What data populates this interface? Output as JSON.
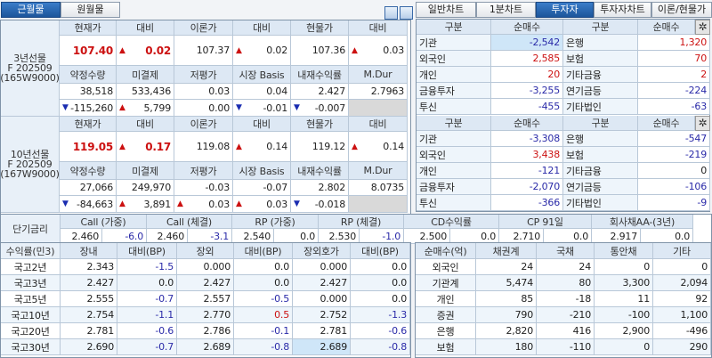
{
  "left_tabs": [
    {
      "label": "근월물",
      "selected": true
    },
    {
      "label": "원월물",
      "selected": false
    }
  ],
  "right_tabs": [
    {
      "label": "일반차트",
      "selected": false
    },
    {
      "label": "1분차트",
      "selected": false
    },
    {
      "label": "투자자",
      "selected": true
    },
    {
      "label": "투자자차트",
      "selected": false
    },
    {
      "label": "이론/현물가",
      "selected": false
    }
  ],
  "icons": {
    "layout_icon_1": "split-horizontal-icon",
    "layout_icon_2": "split-vertical-icon",
    "gear": "gear-icon"
  },
  "colors": {
    "up": "#cc1111",
    "down": "#2a2aa8",
    "accent": "#1c559b",
    "header_bg": "#dde8f4"
  },
  "futures": [
    {
      "label": [
        "3년선물",
        "F 202509",
        "(165W9000)"
      ],
      "headers1": [
        "현재가",
        "대비",
        "이론가",
        "대비",
        "현물가",
        "대비"
      ],
      "values1": [
        {
          "v": "107.40",
          "dir": "",
          "emph": true
        },
        {
          "v": "0.02",
          "dir": "up",
          "emph": true
        },
        {
          "v": "107.37",
          "dir": ""
        },
        {
          "v": "0.02",
          "dir": "up"
        },
        {
          "v": "107.36",
          "dir": ""
        },
        {
          "v": "0.03",
          "dir": "up"
        }
      ],
      "headers2": [
        "약정수량",
        "미결제",
        "저평가",
        "시장 Basis",
        "내재수익률",
        "M.Dur"
      ],
      "values2": [
        "38,518",
        "533,436",
        "0.03",
        "0.04",
        "2.427",
        "2.7963"
      ],
      "changes2": [
        {
          "v": "-115,260",
          "dir": "down"
        },
        {
          "v": "5,799",
          "dir": "up"
        },
        {
          "v": "0.00",
          "dir": ""
        },
        {
          "v": "-0.01",
          "dir": "down"
        },
        {
          "v": "-0.007",
          "dir": "down"
        }
      ]
    },
    {
      "label": [
        "10년선물",
        "F 202509",
        "(167W9000)"
      ],
      "headers1": [
        "현재가",
        "대비",
        "이론가",
        "대비",
        "현물가",
        "대비"
      ],
      "values1": [
        {
          "v": "119.05",
          "dir": "",
          "emph": true
        },
        {
          "v": "0.17",
          "dir": "up",
          "emph": true
        },
        {
          "v": "119.08",
          "dir": ""
        },
        {
          "v": "0.14",
          "dir": "up"
        },
        {
          "v": "119.12",
          "dir": ""
        },
        {
          "v": "0.14",
          "dir": "up"
        }
      ],
      "headers2": [
        "약정수량",
        "미결제",
        "저평가",
        "시장 Basis",
        "내재수익률",
        "M.Dur"
      ],
      "values2": [
        "27,066",
        "249,970",
        "-0.03",
        "-0.07",
        "2.802",
        "8.0735"
      ],
      "changes2": [
        {
          "v": "-84,663",
          "dir": "down"
        },
        {
          "v": "3,891",
          "dir": "up"
        },
        {
          "v": "0.03",
          "dir": "up"
        },
        {
          "v": "0.03",
          "dir": "up"
        },
        {
          "v": "-0.018",
          "dir": "down"
        }
      ]
    }
  ],
  "investors": [
    {
      "headers": [
        "구분",
        "순매수",
        "구분",
        "순매수"
      ],
      "rows": [
        [
          "기관",
          "-2,542",
          "은행",
          "1,320"
        ],
        [
          "외국인",
          "2,585",
          "보험",
          "70"
        ],
        [
          "개인",
          "20",
          "기타금융",
          "2"
        ],
        [
          "금융투자",
          "-3,255",
          "연기금등",
          "-224"
        ],
        [
          "투신",
          "-455",
          "기타법인",
          "-63"
        ]
      ]
    },
    {
      "headers": [
        "구분",
        "순매수",
        "구분",
        "순매수"
      ],
      "rows": [
        [
          "기관",
          "-3,308",
          "은행",
          "-547"
        ],
        [
          "외국인",
          "3,438",
          "보험",
          "-219"
        ],
        [
          "개인",
          "-121",
          "기타금융",
          "0"
        ],
        [
          "금융투자",
          "-2,070",
          "연기금등",
          "-106"
        ],
        [
          "투신",
          "-366",
          "기타법인",
          "-9"
        ]
      ]
    }
  ],
  "short_rates": {
    "label": "단기금리",
    "items": [
      {
        "name": "Call (가중)",
        "rate": "2.460",
        "chg": "-6.0"
      },
      {
        "name": "Call (체결)",
        "rate": "2.460",
        "chg": "-3.1"
      },
      {
        "name": "RP (가중)",
        "rate": "2.540",
        "chg": "0.0"
      },
      {
        "name": "RP (체결)",
        "rate": "2.530",
        "chg": "-1.0"
      },
      {
        "name": "CD수익률",
        "rate": "2.500",
        "chg": "0.0"
      },
      {
        "name": "CP 91일",
        "rate": "2.710",
        "chg": "0.0"
      },
      {
        "name": "회사채AA-(3년)",
        "rate": "2.917",
        "chg": "0.0"
      }
    ]
  },
  "yields": {
    "headers": [
      "수익률(민3)",
      "장내",
      "대비(BP)",
      "장외",
      "대비(BP)",
      "장외호가",
      "대비(BP)"
    ],
    "rows": [
      [
        "국고2년",
        "2.343",
        "-1.5",
        "0.000",
        "0.0",
        "0.000",
        "0.0"
      ],
      [
        "국고3년",
        "2.427",
        "0.0",
        "2.427",
        "0.0",
        "2.427",
        "0.0"
      ],
      [
        "국고5년",
        "2.555",
        "-0.7",
        "2.557",
        "-0.5",
        "0.000",
        "0.0"
      ],
      [
        "국고10년",
        "2.754",
        "-1.1",
        "2.770",
        "0.5",
        "2.752",
        "-1.3"
      ],
      [
        "국고20년",
        "2.781",
        "-0.6",
        "2.786",
        "-0.1",
        "2.781",
        "-0.6"
      ],
      [
        "국고30년",
        "2.690",
        "-0.7",
        "2.689",
        "-0.8",
        "2.689",
        "-0.8"
      ]
    ]
  },
  "net_buy": {
    "headers": [
      "순매수(억)",
      "채권계",
      "국채",
      "통안채",
      "기타"
    ],
    "rows": [
      [
        "외국인",
        "24",
        "24",
        "0",
        "0"
      ],
      [
        "기관계",
        "5,474",
        "80",
        "3,300",
        "2,094"
      ],
      [
        "개인",
        "85",
        "-18",
        "11",
        "92"
      ],
      [
        "증권",
        "790",
        "-210",
        "-100",
        "1,100"
      ],
      [
        "은행",
        "2,820",
        "416",
        "2,900",
        "-496"
      ],
      [
        "보험",
        "180",
        "-110",
        "0",
        "290"
      ]
    ]
  }
}
